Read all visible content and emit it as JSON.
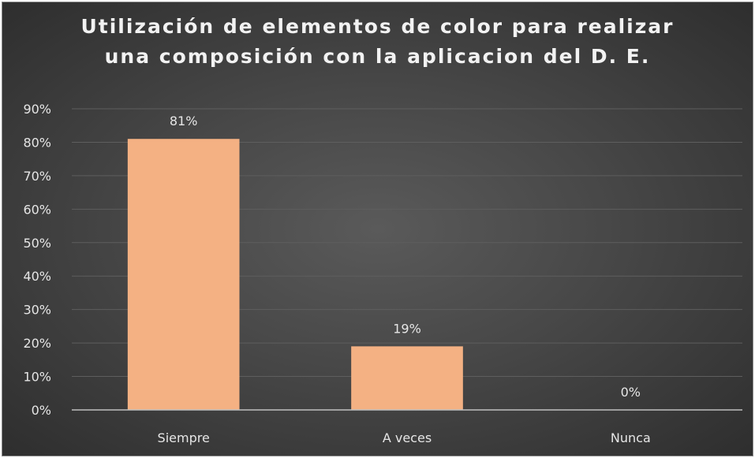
{
  "chart_data": {
    "type": "bar",
    "title": "Utilización de elementos de color para realizar\nuna composición con la aplicacion del D. E.",
    "categories": [
      "Siempre",
      "A veces",
      "Nunca"
    ],
    "values": [
      0.81,
      0.19,
      0.0
    ],
    "data_labels": [
      "81%",
      "19%",
      "0%"
    ],
    "ylim": [
      0,
      0.9
    ],
    "yticks": [
      "0%",
      "10%",
      "20%",
      "30%",
      "40%",
      "50%",
      "60%",
      "70%",
      "80%",
      "90%"
    ],
    "grid": true,
    "legend": "none",
    "xlabel": "",
    "ylabel": ""
  },
  "colors": {
    "bar": "#f4b183",
    "grid": "#5e5e5e",
    "axis": "#bfbfbf"
  }
}
